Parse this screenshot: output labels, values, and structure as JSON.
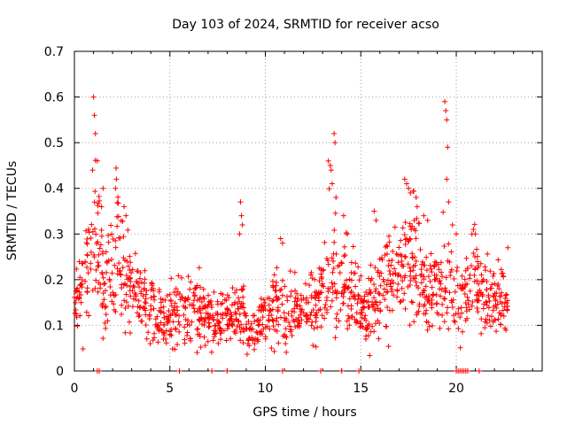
{
  "chart_data": {
    "type": "scatter",
    "title": "Day 103 of 2024, SRMTID for receiver acso",
    "xlabel": "GPS time / hours",
    "ylabel": "SRMTID / TECUs",
    "xlim": [
      0,
      24.5
    ],
    "ylim": [
      0,
      0.7
    ],
    "xticks": [
      0,
      5,
      10,
      15,
      20
    ],
    "yticks": [
      0,
      0.1,
      0.2,
      0.3,
      0.4,
      0.5,
      0.6,
      0.7
    ],
    "ytick_labels": [
      "0",
      "0.1",
      "0.2",
      "0.3",
      "0.4",
      "0.5",
      "0.6",
      "0.7"
    ],
    "xtick_labels": [
      "0",
      "5",
      "10",
      "15",
      "20"
    ],
    "grid": true,
    "marker": "+",
    "color": "#ff0000",
    "series": [
      {
        "name": "SRMTID",
        "profile": [
          [
            0.0,
            0.14
          ],
          [
            0.3,
            0.17
          ],
          [
            0.6,
            0.21
          ],
          [
            0.9,
            0.26
          ],
          [
            1.1,
            0.3
          ],
          [
            1.3,
            0.26
          ],
          [
            1.6,
            0.2
          ],
          [
            1.9,
            0.22
          ],
          [
            2.2,
            0.28
          ],
          [
            2.5,
            0.22
          ],
          [
            3.0,
            0.18
          ],
          [
            3.5,
            0.15
          ],
          [
            4.0,
            0.13
          ],
          [
            4.5,
            0.12
          ],
          [
            5.0,
            0.12
          ],
          [
            5.5,
            0.13
          ],
          [
            6.0,
            0.14
          ],
          [
            6.5,
            0.13
          ],
          [
            7.0,
            0.11
          ],
          [
            7.5,
            0.1
          ],
          [
            8.0,
            0.11
          ],
          [
            8.3,
            0.12
          ],
          [
            8.7,
            0.14
          ],
          [
            9.0,
            0.1
          ],
          [
            9.3,
            0.08
          ],
          [
            9.6,
            0.1
          ],
          [
            10.0,
            0.13
          ],
          [
            10.5,
            0.15
          ],
          [
            11.0,
            0.13
          ],
          [
            11.5,
            0.13
          ],
          [
            12.0,
            0.14
          ],
          [
            12.5,
            0.14
          ],
          [
            13.0,
            0.16
          ],
          [
            13.4,
            0.25
          ],
          [
            13.8,
            0.2
          ],
          [
            14.3,
            0.18
          ],
          [
            14.8,
            0.16
          ],
          [
            15.1,
            0.12
          ],
          [
            15.5,
            0.14
          ],
          [
            16.0,
            0.17
          ],
          [
            16.5,
            0.21
          ],
          [
            17.0,
            0.2
          ],
          [
            17.4,
            0.25
          ],
          [
            17.8,
            0.26
          ],
          [
            18.1,
            0.22
          ],
          [
            18.5,
            0.16
          ],
          [
            19.0,
            0.18
          ],
          [
            19.4,
            0.2
          ],
          [
            19.8,
            0.19
          ],
          [
            20.2,
            0.16
          ],
          [
            20.6,
            0.18
          ],
          [
            21.0,
            0.19
          ],
          [
            21.5,
            0.16
          ],
          [
            22.0,
            0.14
          ],
          [
            22.4,
            0.17
          ],
          [
            22.7,
            0.16
          ]
        ],
        "spikes": [
          [
            1.0,
            0.6
          ],
          [
            1.05,
            0.56
          ],
          [
            1.1,
            0.52
          ],
          [
            1.2,
            0.46
          ],
          [
            0.95,
            0.44
          ],
          [
            1.5,
            0.4
          ],
          [
            2.2,
            0.42
          ],
          [
            2.15,
            0.4
          ],
          [
            2.6,
            0.36
          ],
          [
            2.7,
            0.34
          ],
          [
            8.7,
            0.37
          ],
          [
            8.75,
            0.34
          ],
          [
            8.8,
            0.32
          ],
          [
            8.65,
            0.3
          ],
          [
            10.8,
            0.29
          ],
          [
            10.9,
            0.28
          ],
          [
            13.3,
            0.46
          ],
          [
            13.4,
            0.45
          ],
          [
            13.45,
            0.44
          ],
          [
            13.6,
            0.52
          ],
          [
            13.65,
            0.5
          ],
          [
            13.5,
            0.41
          ],
          [
            13.7,
            0.38
          ],
          [
            14.1,
            0.34
          ],
          [
            14.3,
            0.3
          ],
          [
            15.7,
            0.35
          ],
          [
            15.8,
            0.33
          ],
          [
            17.3,
            0.42
          ],
          [
            17.4,
            0.41
          ],
          [
            17.5,
            0.4
          ],
          [
            17.6,
            0.39
          ],
          [
            17.9,
            0.38
          ],
          [
            17.95,
            0.36
          ],
          [
            17.8,
            0.33
          ],
          [
            18.3,
            0.34
          ],
          [
            18.5,
            0.33
          ],
          [
            19.4,
            0.59
          ],
          [
            19.45,
            0.57
          ],
          [
            19.5,
            0.55
          ],
          [
            19.55,
            0.49
          ],
          [
            19.5,
            0.42
          ],
          [
            19.6,
            0.37
          ],
          [
            19.8,
            0.32
          ],
          [
            20.0,
            0.3
          ],
          [
            20.9,
            0.31
          ],
          [
            21.0,
            0.3
          ],
          [
            22.7,
            0.27
          ]
        ],
        "zeros": [
          1.2,
          1.3,
          5.5,
          7.2,
          8.0,
          10.9,
          12.9,
          14.0,
          14.9,
          20.0,
          20.1,
          20.2,
          20.3,
          20.4,
          20.5,
          20.6,
          21.2
        ],
        "x_range": [
          0,
          22.7
        ],
        "points_per_hour": 60
      }
    ]
  }
}
